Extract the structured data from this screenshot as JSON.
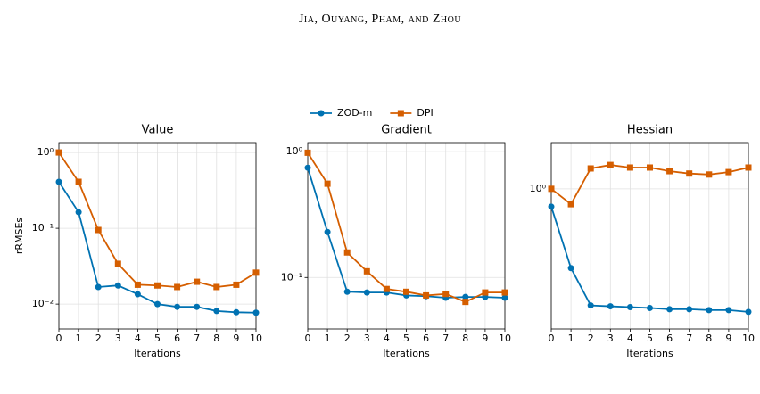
{
  "header": "Jia, Ouyang, Pham, and Zhou",
  "chart_data": [
    {
      "type": "line",
      "title": "Value",
      "x_label": "Iterations",
      "y_label": "rRMSEs",
      "log_y": true,
      "grid": true,
      "x": [
        0,
        1,
        2,
        3,
        4,
        5,
        6,
        7,
        8,
        9,
        10
      ],
      "xlim": [
        0,
        10
      ],
      "xticks": [
        0,
        1,
        2,
        3,
        4,
        5,
        6,
        7,
        8,
        9,
        10
      ],
      "ylim": [
        0.0047,
        1.35
      ],
      "yticks": [
        {
          "value": 1,
          "label": "10⁰"
        },
        {
          "value": 0.1,
          "label": "10⁻¹"
        },
        {
          "value": 0.01,
          "label": "10⁻²"
        }
      ],
      "series": [
        {
          "name": "ZOD-m",
          "color": "#0072b2",
          "marker": "circle",
          "values": [
            0.41,
            0.163,
            0.0168,
            0.0176,
            0.0135,
            0.01,
            0.0092,
            0.0092,
            0.0081,
            0.0078,
            0.0077
          ]
        },
        {
          "name": "DPI",
          "color": "#d55e00",
          "marker": "square",
          "values": [
            1.0,
            0.41,
            0.095,
            0.034,
            0.018,
            0.0176,
            0.0168,
            0.0197,
            0.0168,
            0.018,
            0.026
          ]
        }
      ]
    },
    {
      "type": "line",
      "title": "Gradient",
      "x_label": "Iterations",
      "log_y": true,
      "grid": true,
      "x": [
        0,
        1,
        2,
        3,
        4,
        5,
        6,
        7,
        8,
        9,
        10
      ],
      "xlim": [
        0,
        10
      ],
      "xticks": [
        0,
        1,
        2,
        3,
        4,
        5,
        6,
        7,
        8,
        9,
        10
      ],
      "ylim": [
        0.039,
        1.18
      ],
      "yticks": [
        {
          "value": 1,
          "label": "10⁰"
        },
        {
          "value": 0.1,
          "label": "10⁻¹"
        }
      ],
      "series": [
        {
          "name": "ZOD-m",
          "color": "#0072b2",
          "marker": "circle",
          "values": [
            0.745,
            0.23,
            0.077,
            0.076,
            0.076,
            0.072,
            0.071,
            0.069,
            0.07,
            0.07,
            0.069
          ]
        },
        {
          "name": "DPI",
          "color": "#d55e00",
          "marker": "square",
          "values": [
            0.98,
            0.556,
            0.158,
            0.112,
            0.081,
            0.077,
            0.072,
            0.074,
            0.064,
            0.076,
            0.076
          ]
        }
      ]
    },
    {
      "type": "line",
      "title": "Hessian",
      "x_label": "Iterations",
      "log_y": true,
      "grid": true,
      "x": [
        0,
        1,
        2,
        3,
        4,
        5,
        6,
        7,
        8,
        9,
        10
      ],
      "xlim": [
        0,
        10
      ],
      "xticks": [
        0,
        1,
        2,
        3,
        4,
        5,
        6,
        7,
        8,
        9,
        10
      ],
      "ylim": [
        0.104,
        2.11
      ],
      "yticks": [
        {
          "value": 1,
          "label": "10⁰"
        }
      ],
      "series": [
        {
          "name": "ZOD-m",
          "color": "#0072b2",
          "marker": "circle",
          "values": [
            0.75,
            0.278,
            0.152,
            0.15,
            0.148,
            0.146,
            0.143,
            0.143,
            0.141,
            0.141,
            0.137
          ]
        },
        {
          "name": "DPI",
          "color": "#d55e00",
          "marker": "square",
          "values": [
            1.0,
            0.78,
            1.39,
            1.47,
            1.41,
            1.41,
            1.33,
            1.28,
            1.26,
            1.31,
            1.41
          ]
        }
      ]
    }
  ]
}
